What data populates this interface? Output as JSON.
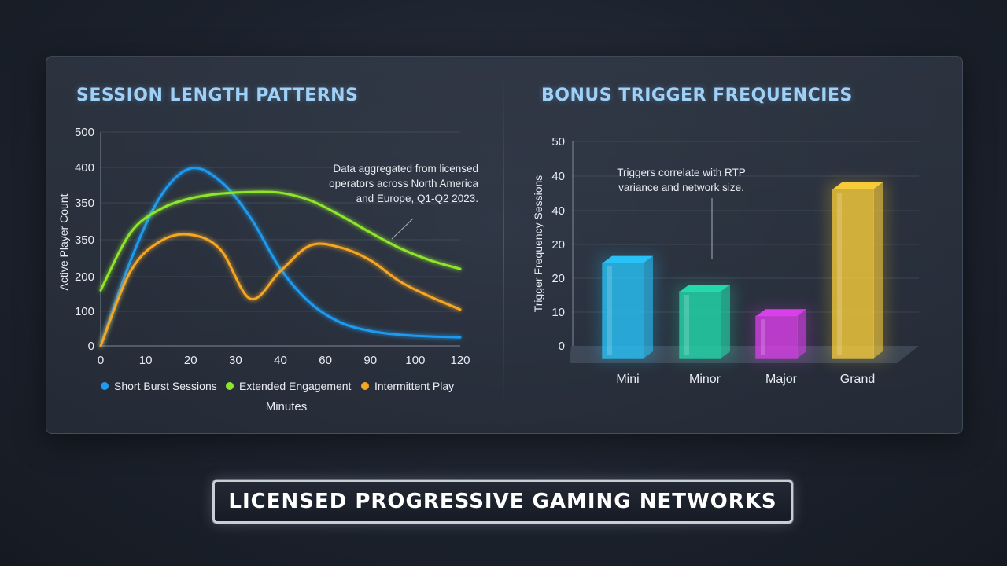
{
  "banner": {
    "text": "LICENSED PROGRESSIVE GAMING NETWORKS"
  },
  "chart_data": [
    {
      "type": "line",
      "title": "SESSION LENGTH PATTERNS",
      "xlabel": "Minutes",
      "ylabel": "Active Player Count",
      "x_ticks": [
        "0",
        "10",
        "20",
        "30",
        "40",
        "60",
        "90",
        "100",
        "120"
      ],
      "y_ticks": [
        "0",
        "100",
        "200",
        "350",
        "350",
        "400",
        "500"
      ],
      "annotation": [
        "Data aggregated from licensed",
        "operators across North America",
        "and Europe, Q1-Q2 2023."
      ],
      "series": [
        {
          "name": "Short Burst Sessions",
          "color": "#1e9bf0",
          "values": [
            0,
            200,
            350,
            415,
            385,
            300,
            180,
            100,
            55,
            35,
            26,
            22,
            20
          ]
        },
        {
          "name": "Extended Engagement",
          "color": "#8ee62a",
          "values": [
            130,
            265,
            320,
            345,
            356,
            360,
            358,
            340,
            305,
            265,
            228,
            200,
            180
          ]
        },
        {
          "name": "Intermittent Play",
          "color": "#f5a623",
          "values": [
            0,
            175,
            245,
            260,
            225,
            110,
            175,
            235,
            230,
            200,
            150,
            115,
            85
          ]
        }
      ],
      "ylim": [
        0,
        500
      ],
      "grid": true,
      "legend": "bottom"
    },
    {
      "type": "bar",
      "title": "BONUS TRIGGER FREQUENCIES",
      "ylabel": "Trigger Frequency Sessions",
      "categories": [
        "Mini",
        "Minor",
        "Major",
        "Grand"
      ],
      "values": [
        22,
        15,
        9,
        40
      ],
      "colors": [
        "#28c8ff",
        "#22e0b0",
        "#e040f0",
        "#ffd23a"
      ],
      "y_ticks": [
        "0",
        "10",
        "20",
        "20",
        "40",
        "40",
        "50"
      ],
      "annotation": [
        "Triggers correlate with RTP",
        "variance and network size."
      ],
      "ylim": [
        0,
        50
      ],
      "grid": true
    }
  ]
}
